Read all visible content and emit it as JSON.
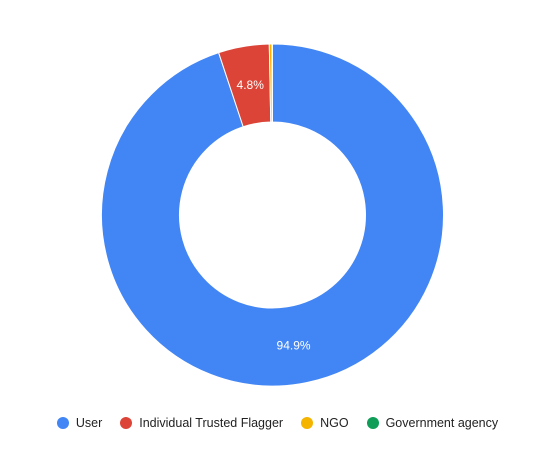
{
  "chart_data": {
    "type": "pie",
    "variant": "donut",
    "title": "",
    "categories": [
      "User",
      "Individual Trusted Flagger",
      "NGO",
      "Government agency"
    ],
    "values": [
      94.9,
      4.8,
      0.25,
      0.05
    ],
    "labels": [
      "94.9%",
      "4.8%",
      "",
      ""
    ],
    "colors": [
      "#4285f4",
      "#db4437",
      "#f4b400",
      "#0f9d58"
    ],
    "legend_position": "bottom"
  }
}
